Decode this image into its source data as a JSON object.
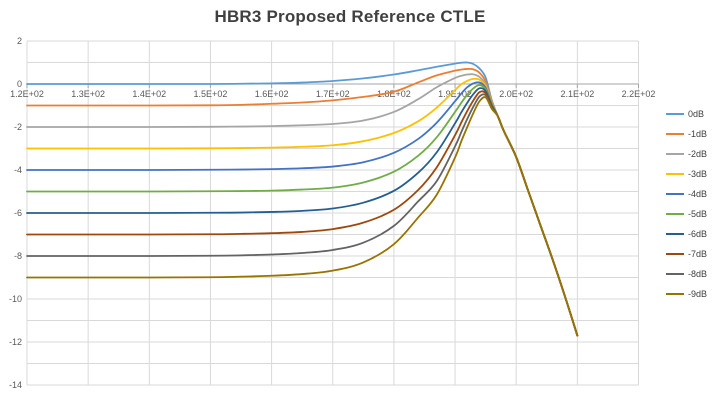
{
  "chart_data": {
    "type": "line",
    "title": "HBR3 Proposed Reference CTLE",
    "xlabel": "",
    "ylabel": "",
    "xlim": [
      120,
      220
    ],
    "ylim": [
      -14,
      2
    ],
    "grid": true,
    "y_gridline_step": 1,
    "legend_position": "right",
    "x_tick_labels": [
      "1.2E+02",
      "1.3E+02",
      "1.4E+02",
      "1.5E+02",
      "1.6E+02",
      "1.7E+02",
      "1.8E+02",
      "1.9E+02",
      "2.0E+02",
      "2.1E+02",
      "2.2E+02"
    ],
    "x_tick_values": [
      120,
      130,
      140,
      150,
      160,
      170,
      180,
      190,
      200,
      210,
      220
    ],
    "y_tick_values": [
      2,
      0,
      -2,
      -4,
      -6,
      -8,
      -10,
      -12,
      -14
    ],
    "x": [
      120,
      140,
      150,
      155,
      160,
      165,
      170,
      175,
      180,
      184,
      187,
      190,
      191,
      192,
      193,
      194,
      195,
      196,
      197,
      198,
      200,
      202,
      204,
      206,
      208,
      210
    ],
    "series": [
      {
        "name": "0dB",
        "color": "#5B9BD5",
        "dc_gain_db": 0,
        "peak_db": 1.0,
        "values": [
          0,
          0,
          0,
          0.01,
          0.03,
          0.07,
          0.14,
          0.26,
          0.44,
          0.64,
          0.8,
          0.95,
          0.99,
          1.0,
          0.93,
          0.72,
          0.3,
          -0.75,
          -1.5,
          -2.2,
          -3.4,
          -5.0,
          -6.6,
          -8.2,
          -9.9,
          -11.7
        ]
      },
      {
        "name": "-1dB",
        "color": "#ED7D31",
        "dc_gain_db": -1,
        "peak_db": 0.7,
        "values": [
          -1,
          -1,
          -0.99,
          -0.97,
          -0.92,
          -0.86,
          -0.76,
          -0.6,
          -0.36,
          0.08,
          0.4,
          0.62,
          0.67,
          0.7,
          0.68,
          0.52,
          0.12,
          -0.8,
          -1.5,
          -2.2,
          -3.4,
          -5.0,
          -6.6,
          -8.2,
          -9.9,
          -11.7
        ]
      },
      {
        "name": "-2dB",
        "color": "#A5A5A5",
        "dc_gain_db": -2,
        "peak_db": 0.45,
        "values": [
          -2,
          -2,
          -1.99,
          -1.98,
          -1.96,
          -1.92,
          -1.86,
          -1.7,
          -1.3,
          -0.7,
          -0.15,
          0.28,
          0.38,
          0.44,
          0.45,
          0.33,
          -0.02,
          -0.85,
          -1.5,
          -2.2,
          -3.4,
          -5.0,
          -6.6,
          -8.2,
          -9.9,
          -11.7
        ]
      },
      {
        "name": "-3dB",
        "color": "#FFC000",
        "dc_gain_db": -3,
        "peak_db": 0.24,
        "values": [
          -3,
          -3,
          -2.99,
          -2.98,
          -2.96,
          -2.92,
          -2.85,
          -2.66,
          -2.28,
          -1.73,
          -1.1,
          -0.28,
          -0.02,
          0.15,
          0.24,
          0.2,
          -0.1,
          -0.88,
          -1.5,
          -2.2,
          -3.4,
          -5.0,
          -6.6,
          -8.2,
          -9.9,
          -11.7
        ]
      },
      {
        "name": "-4dB",
        "color": "#4472C4",
        "dc_gain_db": -4,
        "peak_db": 0.08,
        "values": [
          -4,
          -4,
          -3.99,
          -3.98,
          -3.96,
          -3.92,
          -3.84,
          -3.64,
          -3.2,
          -2.55,
          -1.8,
          -0.8,
          -0.45,
          -0.15,
          0.03,
          0.07,
          -0.18,
          -0.92,
          -1.5,
          -2.2,
          -3.4,
          -5.0,
          -6.6,
          -8.2,
          -9.9,
          -11.7
        ]
      },
      {
        "name": "-5dB",
        "color": "#70AD47",
        "dc_gain_db": -5,
        "peak_db": -0.05,
        "values": [
          -5,
          -5,
          -4.99,
          -4.98,
          -4.96,
          -4.91,
          -4.82,
          -4.58,
          -4.08,
          -3.33,
          -2.48,
          -1.3,
          -0.88,
          -0.5,
          -0.2,
          -0.05,
          -0.25,
          -0.95,
          -1.5,
          -2.2,
          -3.4,
          -5.0,
          -6.6,
          -8.2,
          -9.9,
          -11.7
        ]
      },
      {
        "name": "-6dB",
        "color": "#255E91",
        "dc_gain_db": -6,
        "peak_db": -0.18,
        "values": [
          -6,
          -6,
          -5.99,
          -5.98,
          -5.95,
          -5.9,
          -5.79,
          -5.52,
          -4.97,
          -4.12,
          -3.18,
          -1.83,
          -1.33,
          -0.87,
          -0.47,
          -0.2,
          -0.33,
          -1.0,
          -1.5,
          -2.2,
          -3.4,
          -5.0,
          -6.6,
          -8.2,
          -9.9,
          -11.7
        ]
      },
      {
        "name": "-7dB",
        "color": "#9E480E",
        "dc_gain_db": -7,
        "peak_db": -0.38,
        "values": [
          -7,
          -7,
          -6.99,
          -6.97,
          -6.94,
          -6.88,
          -6.75,
          -6.45,
          -5.85,
          -4.92,
          -3.88,
          -2.38,
          -1.8,
          -1.25,
          -0.76,
          -0.38,
          -0.42,
          -1.05,
          -1.5,
          -2.2,
          -3.4,
          -5.0,
          -6.6,
          -8.2,
          -9.9,
          -11.7
        ]
      },
      {
        "name": "-8dB",
        "color": "#636363",
        "dc_gain_db": -8,
        "peak_db": -0.52,
        "values": [
          -8,
          -8,
          -7.99,
          -7.97,
          -7.93,
          -7.86,
          -7.72,
          -7.38,
          -6.6,
          -5.45,
          -4.52,
          -2.9,
          -2.25,
          -1.62,
          -1.05,
          -0.58,
          -0.52,
          -1.1,
          -1.5,
          -2.2,
          -3.4,
          -5.0,
          -6.6,
          -8.2,
          -9.9,
          -11.7
        ]
      },
      {
        "name": "-9dB",
        "color": "#997300",
        "dc_gain_db": -9,
        "peak_db": -0.62,
        "values": [
          -9,
          -9,
          -8.99,
          -8.96,
          -8.92,
          -8.84,
          -8.68,
          -8.3,
          -7.45,
          -6.2,
          -5.15,
          -3.42,
          -2.68,
          -2.0,
          -1.35,
          -0.8,
          -0.62,
          -1.15,
          -1.5,
          -2.2,
          -3.4,
          -5.0,
          -6.6,
          -8.2,
          -9.9,
          -11.7
        ]
      }
    ]
  },
  "colors": {
    "gridline": "#D9D9D9",
    "axis": "#A6A6A6",
    "tick_label": "#595959",
    "title": "#404040",
    "background": "#FFFFFF"
  }
}
